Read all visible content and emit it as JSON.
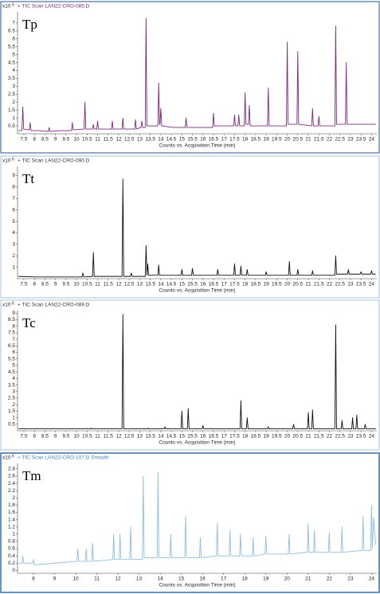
{
  "chart_data": [
    {
      "type": "line",
      "title": "+ TIC Scan LAN22-CRO-085.D",
      "label": "Tp",
      "y_scale_base": "x10",
      "y_scale_exp": "5",
      "x_label": "Counts vs. Acquisition Time (min)",
      "color": "#7b2a7b",
      "title_color": "#7b2a7b",
      "xlim": [
        7.2,
        24.25
      ],
      "ylim": [
        0,
        7.7
      ],
      "xticks": [
        7.5,
        8,
        8.5,
        9,
        9.5,
        10,
        10.5,
        11,
        11.5,
        12,
        12.5,
        13,
        13.5,
        14,
        14.5,
        15,
        15.5,
        16,
        16.5,
        17,
        17.5,
        18,
        18.5,
        19,
        19.5,
        20,
        20.5,
        21,
        21.5,
        22,
        22.5,
        23,
        23.5,
        24
      ],
      "yticks": [
        0.5,
        1,
        1.5,
        2,
        2.5,
        3,
        3.5,
        4,
        4.5,
        5,
        5.5,
        6,
        6.5,
        7
      ],
      "x": [
        7.25,
        7.41,
        7.45,
        7.49,
        7.76,
        7.8,
        7.84,
        8.2,
        8.66,
        8.7,
        8.74,
        9.3,
        9.76,
        9.8,
        9.84,
        10.36,
        10.4,
        10.44,
        10.76,
        10.8,
        10.84,
        10.96,
        11.0,
        11.04,
        11.66,
        11.7,
        11.74,
        12.16,
        12.2,
        12.24,
        12.76,
        12.8,
        12.84,
        13.06,
        13.1,
        13.14,
        13.26,
        13.3,
        13.34,
        13.86,
        13.9,
        13.94,
        13.96,
        14.0,
        14.04,
        14.6,
        15.16,
        15.2,
        15.24,
        15.8,
        16.46,
        16.5,
        16.54,
        17.46,
        17.5,
        17.54,
        17.66,
        17.7,
        17.74,
        17.96,
        18.0,
        18.04,
        18.16,
        18.2,
        18.24,
        18.6,
        19.06,
        19.1,
        19.14,
        19.6,
        19.96,
        20.0,
        20.04,
        20.46,
        20.5,
        20.54,
        21.16,
        21.2,
        21.24,
        21.46,
        21.5,
        21.54,
        22.26,
        22.3,
        22.34,
        22.76,
        22.8,
        22.84,
        23.4,
        24.2
      ],
      "values": [
        0.2,
        0.2,
        1.7,
        0.3,
        0.25,
        0.7,
        0.2,
        0.2,
        0.15,
        0.4,
        0.15,
        0.2,
        0.2,
        0.7,
        0.25,
        0.3,
        2.0,
        0.3,
        0.3,
        0.6,
        0.3,
        0.3,
        0.8,
        0.3,
        0.3,
        0.8,
        0.3,
        0.3,
        1.0,
        0.3,
        0.3,
        0.9,
        0.3,
        0.4,
        0.8,
        0.4,
        0.4,
        7.3,
        0.5,
        0.5,
        3.2,
        0.6,
        0.6,
        1.6,
        0.5,
        0.4,
        0.4,
        1.0,
        0.4,
        0.4,
        0.4,
        1.3,
        0.5,
        0.5,
        1.2,
        0.5,
        0.5,
        1.2,
        0.5,
        0.5,
        2.6,
        0.6,
        0.6,
        1.8,
        0.5,
        0.5,
        0.5,
        2.9,
        0.5,
        0.5,
        0.5,
        5.8,
        0.6,
        0.6,
        5.2,
        0.6,
        0.5,
        1.6,
        0.5,
        0.5,
        1.1,
        0.5,
        0.5,
        6.8,
        0.6,
        0.6,
        4.5,
        0.6,
        0.6,
        0.6
      ]
    },
    {
      "type": "line",
      "title": "+ TIC Scan LAN22-CRO-090.D",
      "label": "Tt",
      "y_scale_base": "x10",
      "y_scale_exp": "6",
      "x_label": "Counts vs. Acquisition Time (min)",
      "color": "#111111",
      "title_color": "#333333",
      "xlim": [
        7.2,
        24.25
      ],
      "ylim": [
        0,
        9.8
      ],
      "xticks": [
        7.5,
        8,
        8.5,
        9,
        9.5,
        10,
        10.5,
        11,
        11.5,
        12,
        12.5,
        13,
        13.5,
        14,
        14.5,
        15,
        15.5,
        16,
        16.5,
        17,
        17.5,
        18,
        18.5,
        19,
        19.5,
        20,
        20.5,
        21,
        21.5,
        22,
        22.5,
        23,
        23.5,
        24
      ],
      "yticks": [
        1,
        2,
        3,
        4,
        5,
        6,
        7,
        8,
        9
      ],
      "x": [
        7.25,
        8.0,
        9.0,
        10.26,
        10.3,
        10.34,
        10.76,
        10.8,
        10.84,
        12.16,
        12.2,
        12.24,
        12.56,
        12.6,
        12.64,
        13.26,
        13.3,
        13.34,
        13.38,
        13.42,
        13.86,
        13.9,
        13.94,
        14.96,
        15.0,
        15.04,
        15.46,
        15.5,
        15.54,
        16.66,
        16.7,
        16.74,
        17.46,
        17.5,
        17.54,
        17.76,
        17.8,
        17.84,
        18.06,
        18.1,
        18.14,
        18.96,
        19.0,
        19.04,
        20.06,
        20.1,
        20.14,
        20.46,
        20.5,
        20.54,
        21.16,
        21.2,
        21.24,
        22.26,
        22.3,
        22.34,
        22.86,
        22.9,
        22.94,
        23.46,
        23.5,
        23.54,
        23.96,
        24.0,
        24.04,
        24.2
      ],
      "values": [
        0.2,
        0.15,
        0.15,
        0.15,
        0.5,
        0.15,
        0.2,
        2.3,
        0.2,
        0.2,
        8.7,
        0.2,
        0.2,
        0.5,
        0.2,
        0.2,
        2.9,
        0.3,
        1.3,
        0.3,
        0.3,
        1.2,
        0.3,
        0.3,
        0.8,
        0.3,
        0.3,
        0.9,
        0.3,
        0.3,
        0.8,
        0.3,
        0.3,
        1.3,
        0.3,
        0.3,
        1.1,
        0.3,
        0.3,
        0.8,
        0.3,
        0.3,
        0.6,
        0.3,
        0.3,
        1.5,
        0.3,
        0.3,
        0.8,
        0.3,
        0.3,
        0.7,
        0.3,
        0.3,
        2.0,
        0.4,
        0.4,
        0.8,
        0.4,
        0.4,
        0.6,
        0.4,
        0.4,
        0.7,
        0.4,
        0.4
      ]
    },
    {
      "type": "line",
      "title": "+ TIC Scan LAN22-CRO-089.D",
      "label": "Tc",
      "y_scale_base": "x10",
      "y_scale_exp": "6",
      "x_label": "Counts vs. Acquisition Time (min)",
      "color": "#111111",
      "title_color": "#333333",
      "xlim": [
        7.2,
        24.25
      ],
      "ylim": [
        0,
        9.2
      ],
      "xticks": [
        7.5,
        8,
        8.5,
        9,
        9.5,
        10,
        10.5,
        11,
        11.5,
        12,
        12.5,
        13,
        13.5,
        14,
        14.5,
        15,
        15.5,
        16,
        16.5,
        17,
        17.5,
        18,
        18.5,
        19,
        19.5,
        20,
        20.5,
        21,
        21.5,
        22,
        22.5,
        23,
        23.5,
        24
      ],
      "yticks": [
        0.5,
        1,
        1.5,
        2,
        2.5,
        3,
        3.5,
        4,
        4.5,
        5,
        5.5,
        6,
        6.5,
        7,
        7.5,
        8,
        8.5,
        9
      ],
      "x": [
        7.25,
        9.0,
        10.66,
        10.7,
        10.74,
        12.16,
        12.2,
        12.24,
        13.36,
        13.4,
        13.44,
        14.16,
        14.2,
        14.24,
        14.96,
        15.0,
        15.04,
        15.26,
        15.3,
        15.34,
        15.96,
        16.0,
        16.04,
        17.76,
        17.8,
        17.84,
        18.06,
        18.1,
        18.14,
        19.06,
        19.1,
        19.14,
        20.26,
        20.3,
        20.34,
        20.96,
        21.0,
        21.04,
        21.16,
        21.2,
        21.24,
        22.26,
        22.3,
        22.34,
        22.56,
        22.6,
        22.64,
        23.06,
        23.1,
        23.14,
        23.26,
        23.3,
        23.34,
        23.66,
        23.7,
        23.74,
        24.2
      ],
      "values": [
        0.15,
        0.15,
        0.15,
        0.2,
        0.15,
        0.15,
        8.9,
        0.15,
        0.15,
        0.2,
        0.15,
        0.15,
        0.3,
        0.15,
        0.15,
        1.5,
        0.15,
        0.15,
        1.7,
        0.15,
        0.15,
        0.4,
        0.15,
        0.15,
        2.3,
        0.15,
        0.15,
        1.0,
        0.15,
        0.15,
        0.3,
        0.15,
        0.15,
        0.5,
        0.15,
        0.15,
        1.4,
        0.15,
        0.15,
        1.6,
        0.15,
        0.15,
        8.1,
        0.15,
        0.15,
        0.8,
        0.15,
        0.15,
        1.0,
        0.15,
        0.15,
        1.2,
        0.15,
        0.15,
        0.5,
        0.15,
        0.15
      ]
    },
    {
      "type": "line",
      "title": "+ TIC Scan LAN22-CRO-107.D  Smooth",
      "label": "Tm",
      "y_scale_base": "x10",
      "y_scale_exp": "6",
      "x_label": "Counts vs. Acquisition Time (min)",
      "color": "#8fbfdc",
      "title_color": "#3a86c0",
      "xlim": [
        7.25,
        24.25
      ],
      "ylim": [
        -0.08,
        2.95
      ],
      "xticks": [
        8,
        9,
        10,
        11,
        12,
        13,
        14,
        15,
        16,
        17,
        18,
        19,
        20,
        21,
        22,
        23,
        24
      ],
      "yticks": [
        0,
        0.2,
        0.4,
        0.6,
        0.8,
        1,
        1.2,
        1.4,
        1.6,
        1.8,
        2,
        2.2,
        2.4,
        2.6,
        2.8
      ],
      "x": [
        7.3,
        7.46,
        7.5,
        7.54,
        7.96,
        8.0,
        8.04,
        9.0,
        10.06,
        10.1,
        10.14,
        10.46,
        10.5,
        10.54,
        10.76,
        10.8,
        10.84,
        11.76,
        11.8,
        11.84,
        12.06,
        12.1,
        12.14,
        12.56,
        12.6,
        12.64,
        13.16,
        13.2,
        13.24,
        13.86,
        13.9,
        13.94,
        14.46,
        14.5,
        14.54,
        15.16,
        15.2,
        15.24,
        15.86,
        15.9,
        15.94,
        16.66,
        16.7,
        16.74,
        17.26,
        17.3,
        17.34,
        17.76,
        17.8,
        17.84,
        18.36,
        18.4,
        18.44,
        18.96,
        19.0,
        19.04,
        20.06,
        20.1,
        20.14,
        20.96,
        21.0,
        21.04,
        21.26,
        21.3,
        21.34,
        21.96,
        22.0,
        22.04,
        22.56,
        22.6,
        22.64,
        23.56,
        23.6,
        23.64,
        23.96,
        24.0,
        24.04,
        24.1,
        24.2
      ],
      "values": [
        0.2,
        0.2,
        0.4,
        0.2,
        0.2,
        0.3,
        0.15,
        0.2,
        0.25,
        0.6,
        0.25,
        0.25,
        0.6,
        0.25,
        0.25,
        0.75,
        0.25,
        0.3,
        1.0,
        0.3,
        0.3,
        1.0,
        0.3,
        0.3,
        1.2,
        0.3,
        0.3,
        2.6,
        0.35,
        0.35,
        2.7,
        0.35,
        0.35,
        1.0,
        0.35,
        0.35,
        1.5,
        0.35,
        0.35,
        0.9,
        0.35,
        0.4,
        1.3,
        0.4,
        0.4,
        1.1,
        0.4,
        0.4,
        1.0,
        0.4,
        0.4,
        0.9,
        0.4,
        0.45,
        0.95,
        0.45,
        0.45,
        1.0,
        0.45,
        0.5,
        1.3,
        0.5,
        0.5,
        1.1,
        0.5,
        0.5,
        1.05,
        0.5,
        0.5,
        1.2,
        0.5,
        0.55,
        1.5,
        0.55,
        0.55,
        1.8,
        0.6,
        1.45,
        0.7
      ]
    }
  ]
}
